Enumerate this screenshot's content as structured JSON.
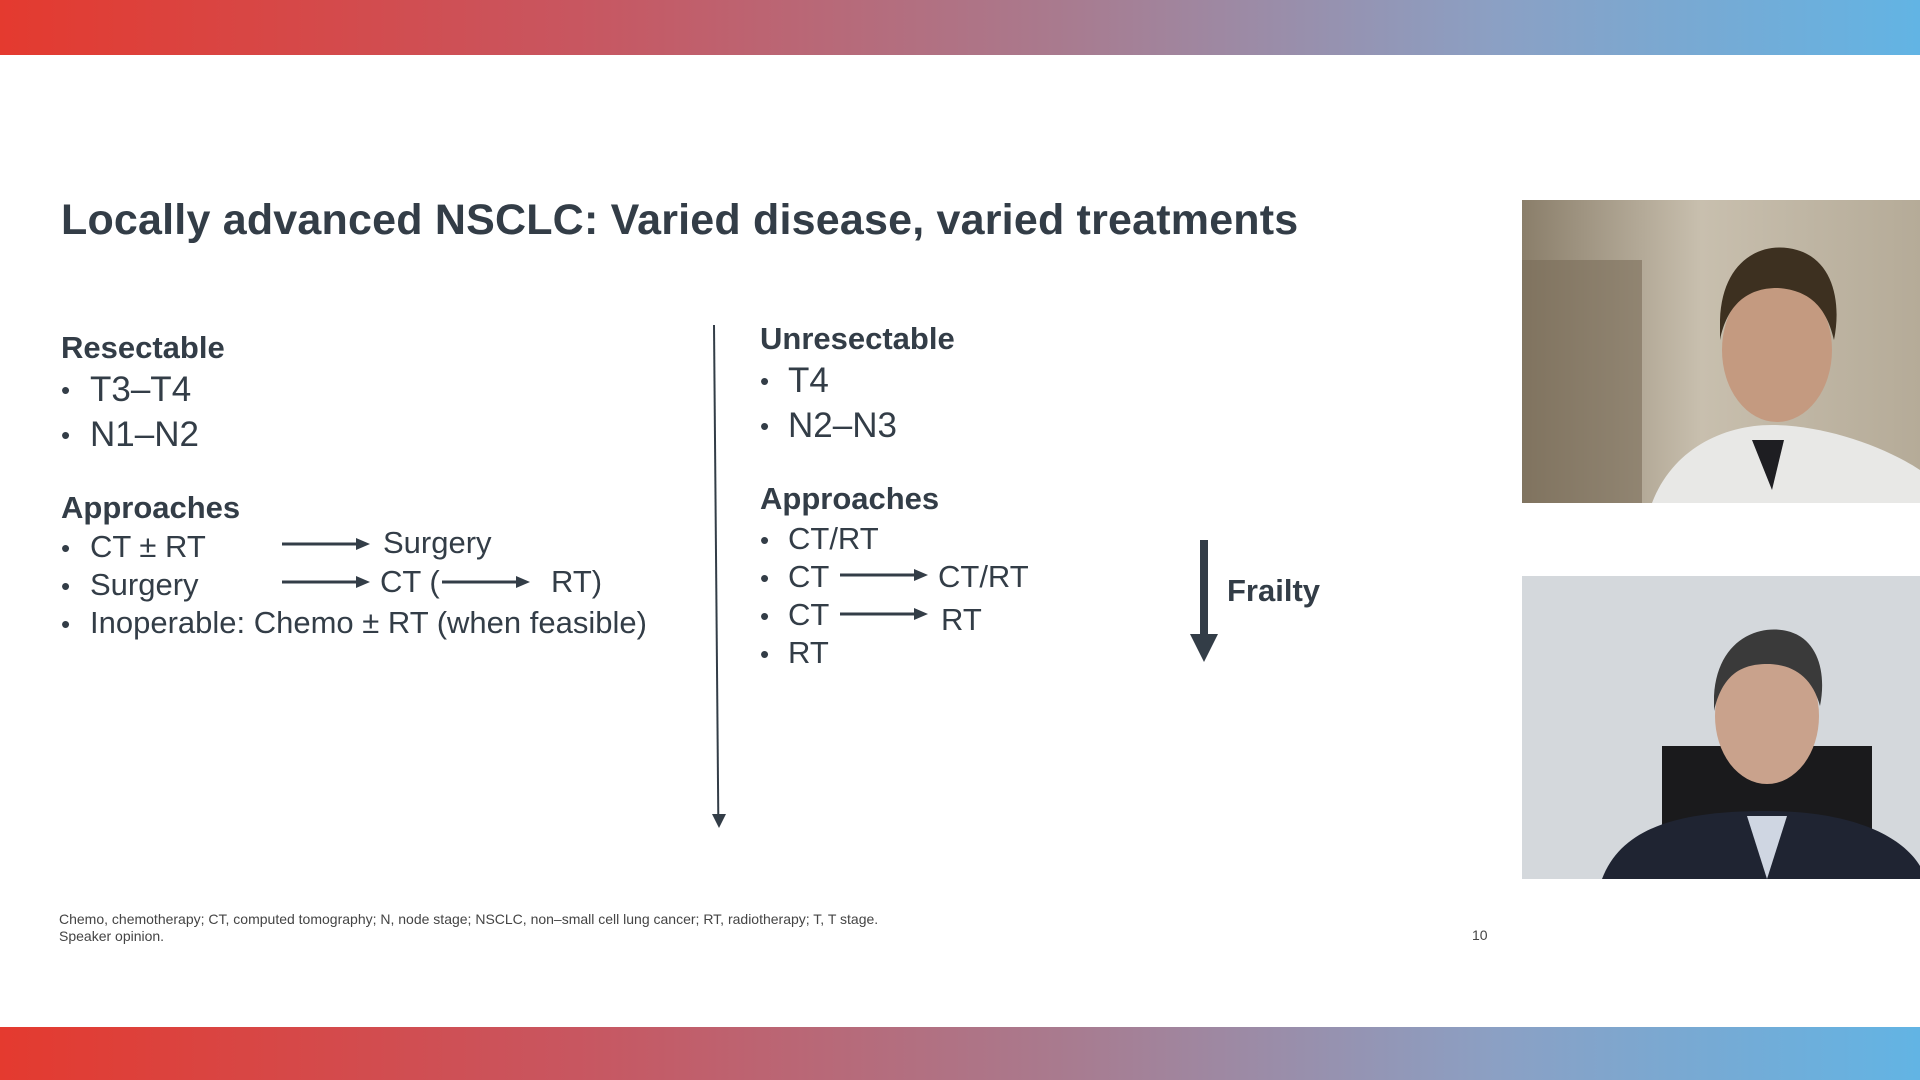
{
  "slide": {
    "title": "Locally advanced NSCLC: Varied disease, varied treatments",
    "page_number": "10",
    "footnote_line1": "Chemo, chemotherapy; CT, computed tomography; N, node stage; NSCLC, non–small cell lung cancer; RT, radiotherapy; T, T stage.",
    "footnote_line2": "Speaker opinion."
  },
  "left": {
    "heading": "Resectable",
    "stages": [
      "T3–T4",
      "N1–N2"
    ],
    "approaches_heading": "Approaches",
    "row1_a": "CT ± RT",
    "row1_b": "Surgery",
    "row2_a": "Surgery",
    "row2_b": "CT (",
    "row2_c": "RT)",
    "row3": "Inoperable: Chemo ± RT (when feasible)"
  },
  "right": {
    "heading": "Unresectable",
    "stages": [
      "T4",
      "N2–N3"
    ],
    "approaches_heading": "Approaches",
    "row1": "CT/RT",
    "row2_a": "CT",
    "row2_b": "CT/RT",
    "row3_a": "CT",
    "row3_b": "RT",
    "row4": "RT",
    "frailty": "Frailty"
  },
  "colors": {
    "text": "#333d47",
    "band_start": "#e43a2f",
    "band_end": "#62b4e4"
  }
}
